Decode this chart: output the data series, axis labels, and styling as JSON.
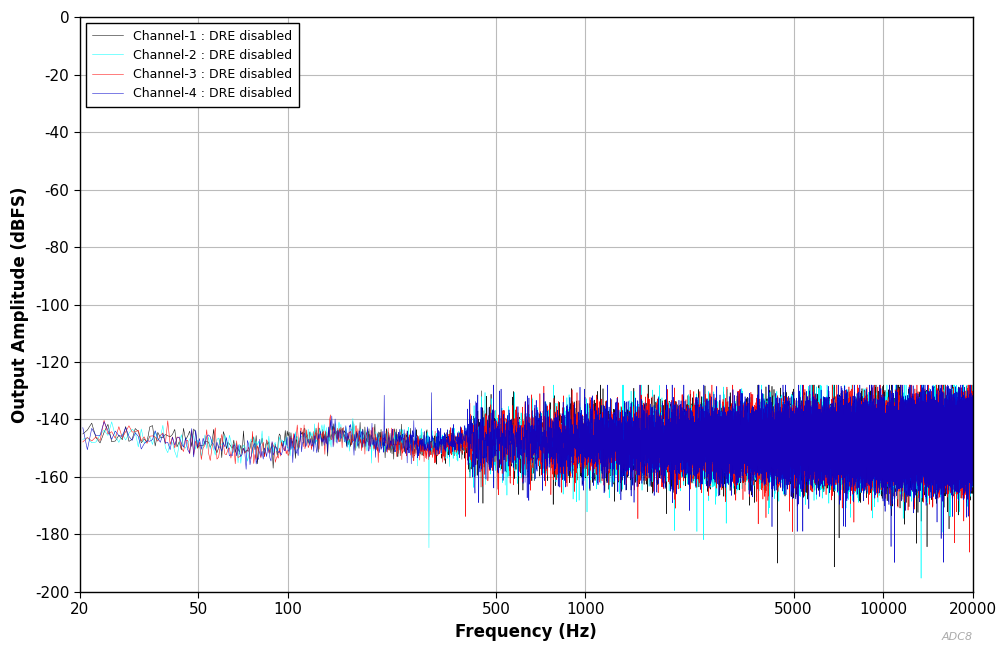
{
  "xlabel": "Frequency (Hz)",
  "ylabel": "Output Amplitude (dBFS)",
  "xlim": [
    20,
    20000
  ],
  "ylim": [
    -200,
    0
  ],
  "yticks": [
    0,
    -20,
    -40,
    -60,
    -80,
    -100,
    -120,
    -140,
    -160,
    -180,
    -200
  ],
  "xticks": [
    20,
    50,
    100,
    500,
    1000,
    5000,
    10000,
    20000
  ],
  "xticklabels": [
    "20",
    "50",
    "100",
    "500",
    "1000",
    "5000",
    "10000",
    "20000"
  ],
  "channels": [
    {
      "label": "Channel-1 : DRE disabled",
      "color": "#000000",
      "seed": 10
    },
    {
      "label": "Channel-2 : DRE disabled",
      "color": "#00FFFF",
      "seed": 20
    },
    {
      "label": "Channel-3 : DRE disabled",
      "color": "#FF0000",
      "seed": 30
    },
    {
      "label": "Channel-4 : DRE disabled",
      "color": "#0000CC",
      "seed": 40
    }
  ],
  "noise_floor_mean": -148,
  "noise_floor_std": 6,
  "background_color": "#FFFFFF",
  "grid_color": "#BBBBBB",
  "watermark": "ADC8",
  "figsize": [
    10.08,
    6.52
  ],
  "dpi": 100
}
